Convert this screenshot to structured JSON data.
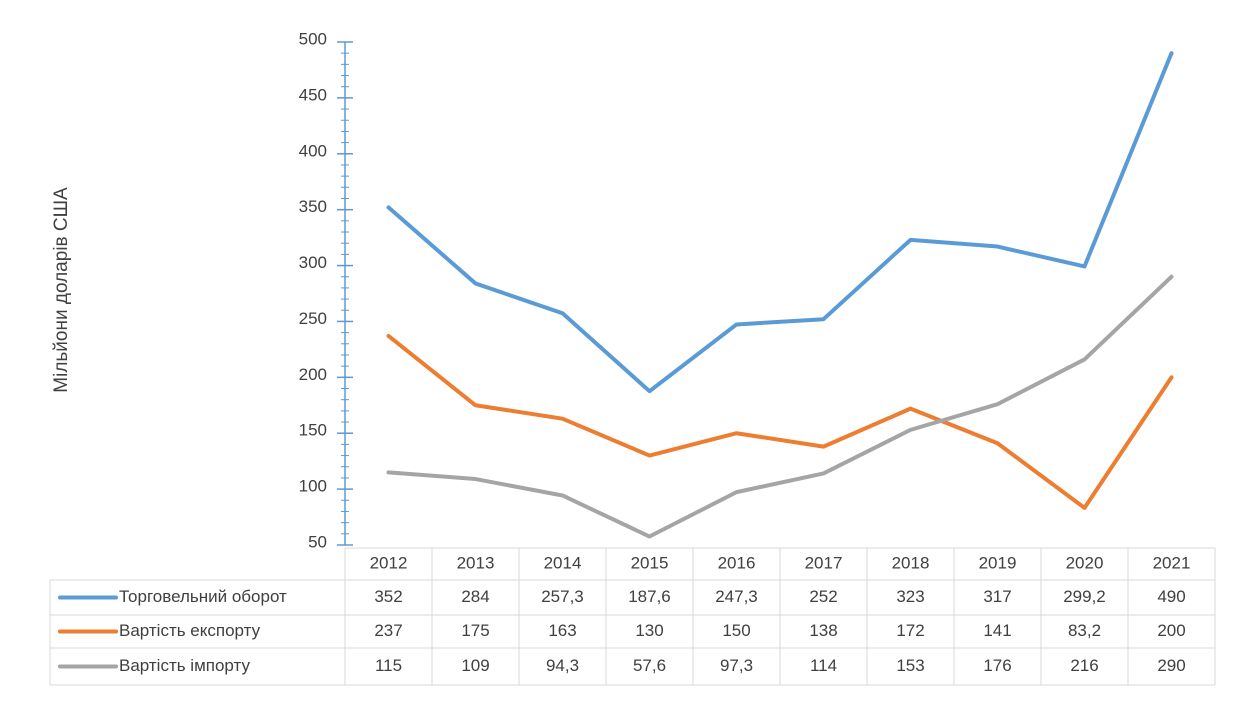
{
  "chart_data": {
    "type": "line",
    "y_label": "Мільйони доларів США",
    "categories": [
      "2012",
      "2013",
      "2014",
      "2015",
      "2016",
      "2017",
      "2018",
      "2019",
      "2020",
      "2021"
    ],
    "series": [
      {
        "name": "Торговельний оборот",
        "color": "#5b9bd5",
        "values": [
          352,
          284,
          257.3,
          187.6,
          247.3,
          252,
          323,
          317,
          299.2,
          490
        ],
        "value_labels": [
          "352",
          "284",
          "257,3",
          "187,6",
          "247,3",
          "252",
          "323",
          "317",
          "299,2",
          "490"
        ]
      },
      {
        "name": "Вартість експорту",
        "color": "#ed7d31",
        "values": [
          237,
          175,
          163,
          130,
          150,
          138,
          172,
          141,
          83.2,
          200
        ],
        "value_labels": [
          "237",
          "175",
          "163",
          "130",
          "150",
          "138",
          "172",
          "141",
          "83,2",
          "200"
        ]
      },
      {
        "name": "Вартість імпорту",
        "color": "#a5a5a5",
        "values": [
          115,
          109,
          94.3,
          57.6,
          97.3,
          114,
          153,
          176,
          216,
          290
        ],
        "value_labels": [
          "115",
          "109",
          "94,3",
          "57,6",
          "97,3",
          "114",
          "153",
          "176",
          "216",
          "290"
        ]
      }
    ],
    "ylim": [
      50,
      500
    ],
    "yticks": [
      50,
      100,
      150,
      200,
      250,
      300,
      350,
      400,
      450,
      500
    ],
    "grid": false
  }
}
